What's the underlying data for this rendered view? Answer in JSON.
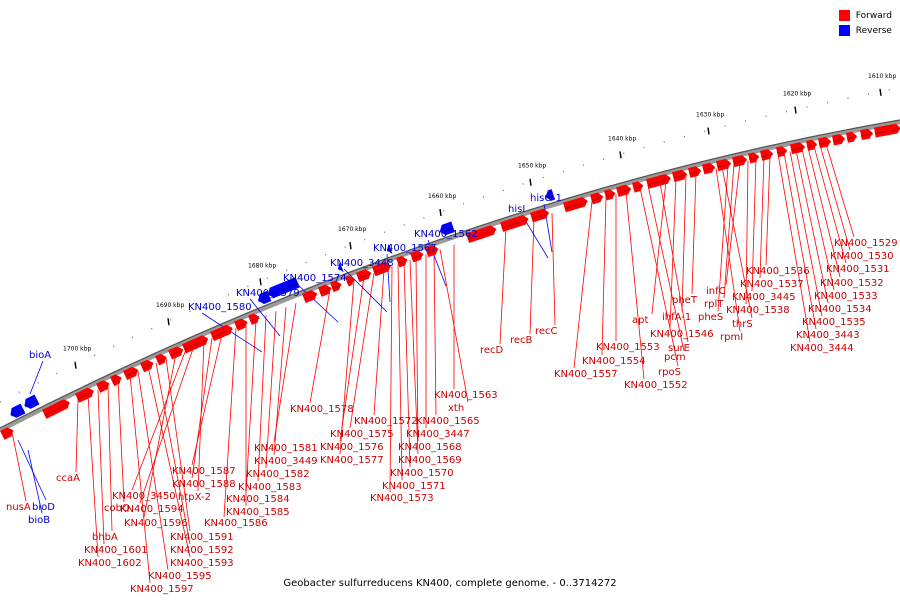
{
  "legend": {
    "forward_label": "Forward",
    "reverse_label": "Reverse",
    "forward_color": "#ff0000",
    "reverse_color": "#0000ff"
  },
  "caption": "Geobacter sulfurreducens KN400, complete genome. - 0..3714272",
  "ticks": [
    "1610 kbp",
    "1620 kbp",
    "1630 kbp",
    "1640 kbp",
    "1650 kbp",
    "1660 kbp",
    "1670 kbp",
    "1680 kbp",
    "1690 kbp",
    "1700 kbp"
  ],
  "reverse_labels": [
    "bioA",
    "KN400_1580",
    "KN400_1579",
    "KN400_1574",
    "KN400_3448",
    "KN400_1567",
    "KN400_1562",
    "hisI",
    "hisG-1",
    "bioD",
    "bioB"
  ],
  "forward_labels": [
    "KN400_1529",
    "KN400_1530",
    "KN400_1531",
    "KN400_1532",
    "KN400_1533",
    "KN400_1534",
    "KN400_1535",
    "KN400_3443",
    "KN400_3444",
    "KN400_1536",
    "KN400_1537",
    "KN400_3445",
    "KN400_1538",
    "infC",
    "rplT",
    "pheS",
    "thrS",
    "rpmI",
    "pheT",
    "ihfA-1",
    "KN400_1546",
    "apt",
    "surE",
    "pcm",
    "rpoS",
    "KN400_1552",
    "KN400_1553",
    "KN400_1554",
    "KN400_1557",
    "recC",
    "recB",
    "recD",
    "KN400_1563",
    "xth",
    "KN400_1565",
    "KN400_3447",
    "KN400_1568",
    "KN400_1569",
    "KN400_1570",
    "KN400_1571",
    "KN400_1573",
    "KN400_1572",
    "KN400_1575",
    "KN400_1576",
    "KN400_1577",
    "KN400_1578",
    "KN400_1581",
    "KN400_3449",
    "KN400_1582",
    "KN400_1583",
    "KN400_1584",
    "KN400_1585",
    "KN400_1586",
    "KN400_1587",
    "KN400_1588",
    "htpX-2",
    "KN400_1594",
    "KN400_3450",
    "KN400_1596",
    "KN400_1591",
    "KN400_1592",
    "KN400_1593",
    "KN400_1595",
    "KN400_1597",
    "cobO",
    "bhbA",
    "KN400_1601",
    "KN400_1602",
    "ccaA",
    "nusA"
  ]
}
